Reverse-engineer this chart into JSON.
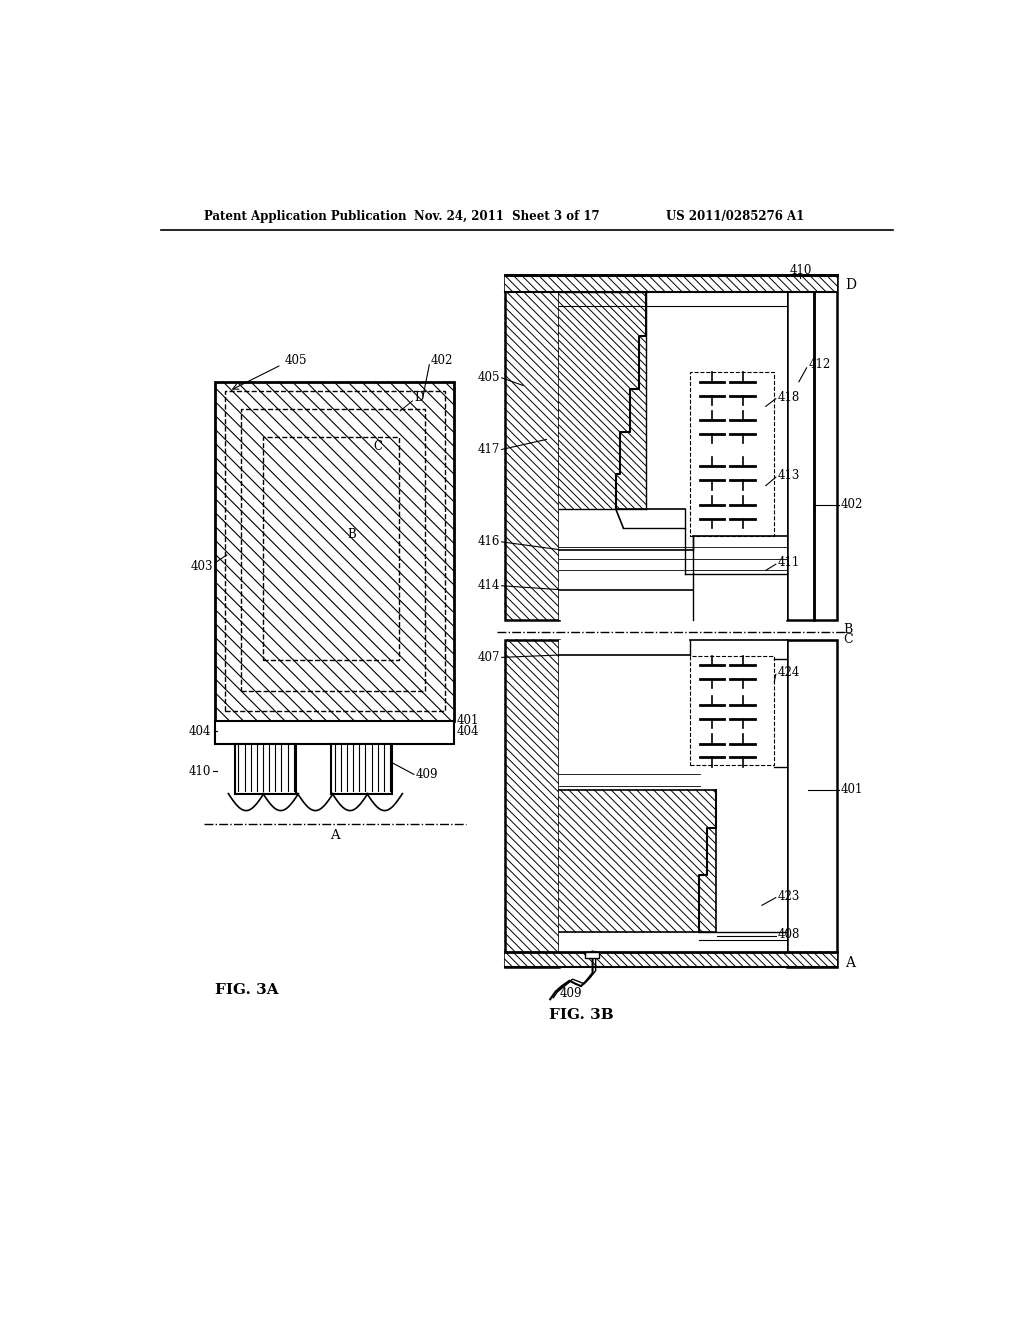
{
  "header_left": "Patent Application Publication",
  "header_mid": "Nov. 24, 2011  Sheet 3 of 17",
  "header_right": "US 2011/0285276 A1",
  "fig3a": "FIG. 3A",
  "fig3b": "FIG. 3B",
  "bg": "#ffffff",
  "lc": "#000000"
}
